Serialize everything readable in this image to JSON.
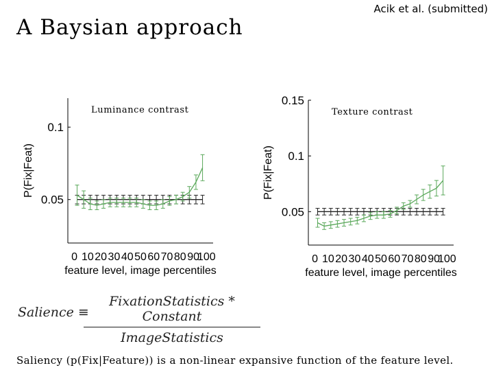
{
  "citation": "Acik et al. (submitted)",
  "slide_title": "A Baysian approach",
  "formula": {
    "lhs": "Salience ≡",
    "numerator": "FixationStatistics * Constant",
    "denominator": "ImageStatistics"
  },
  "caption": "Saliency (p(Fix|Feature)) is a non-linear expansive function of the feature level.",
  "chart_data": [
    {
      "type": "line",
      "title": "Luminance contrast",
      "xlabel": "feature level, image percentiles",
      "ylabel": "P(Fix|Feat)",
      "x_tick_labels": [
        "0",
        "10",
        "20",
        "30",
        "40",
        "50",
        "60",
        "70",
        "80",
        "90",
        "100"
      ],
      "y_ticks": [
        0.05,
        0.1
      ],
      "xlim": [
        -5,
        105
      ],
      "ylim": [
        0.02,
        0.12
      ],
      "x": [
        2,
        7,
        12,
        17,
        22,
        27,
        32,
        37,
        42,
        47,
        52,
        57,
        62,
        67,
        72,
        77,
        82,
        87,
        92,
        97
      ],
      "series": [
        {
          "color": "#5aa85a",
          "values": [
            0.053,
            0.05,
            0.047,
            0.046,
            0.047,
            0.048,
            0.048,
            0.048,
            0.048,
            0.048,
            0.047,
            0.046,
            0.046,
            0.047,
            0.049,
            0.05,
            0.052,
            0.055,
            0.062,
            0.072
          ],
          "errors": [
            0.007,
            0.006,
            0.004,
            0.003,
            0.003,
            0.003,
            0.003,
            0.003,
            0.003,
            0.003,
            0.003,
            0.003,
            0.003,
            0.003,
            0.003,
            0.003,
            0.003,
            0.004,
            0.005,
            0.009
          ]
        },
        {
          "color": "#222222",
          "values": [
            0.05,
            0.05,
            0.05,
            0.05,
            0.05,
            0.05,
            0.05,
            0.05,
            0.05,
            0.05,
            0.05,
            0.05,
            0.05,
            0.05,
            0.05,
            0.05,
            0.05,
            0.05,
            0.05,
            0.05
          ],
          "errors": [
            0.003,
            0.003,
            0.003,
            0.003,
            0.003,
            0.003,
            0.003,
            0.003,
            0.003,
            0.003,
            0.003,
            0.003,
            0.003,
            0.003,
            0.003,
            0.003,
            0.003,
            0.003,
            0.003,
            0.003
          ]
        }
      ]
    },
    {
      "type": "line",
      "title": "Texture contrast",
      "xlabel": "feature level, image percentiles",
      "ylabel": "P(Fix|Feat)",
      "x_tick_labels": [
        "0",
        "10",
        "20",
        "30",
        "40",
        "50",
        "60",
        "70",
        "80",
        "90",
        "100"
      ],
      "y_ticks": [
        0.05,
        0.1,
        0.15
      ],
      "xlim": [
        -5,
        105
      ],
      "ylim": [
        0.02,
        0.15
      ],
      "x": [
        2,
        7,
        12,
        17,
        22,
        27,
        32,
        37,
        42,
        47,
        52,
        57,
        62,
        67,
        72,
        77,
        82,
        87,
        92,
        97
      ],
      "series": [
        {
          "color": "#5aa85a",
          "values": [
            0.04,
            0.037,
            0.038,
            0.039,
            0.04,
            0.041,
            0.042,
            0.044,
            0.046,
            0.047,
            0.047,
            0.048,
            0.051,
            0.055,
            0.057,
            0.061,
            0.065,
            0.068,
            0.071,
            0.078
          ],
          "errors": [
            0.004,
            0.003,
            0.003,
            0.003,
            0.003,
            0.003,
            0.003,
            0.003,
            0.003,
            0.003,
            0.003,
            0.003,
            0.003,
            0.003,
            0.003,
            0.004,
            0.005,
            0.006,
            0.007,
            0.013
          ]
        },
        {
          "color": "#222222",
          "values": [
            0.05,
            0.05,
            0.05,
            0.05,
            0.05,
            0.05,
            0.05,
            0.05,
            0.05,
            0.05,
            0.05,
            0.05,
            0.05,
            0.05,
            0.05,
            0.05,
            0.05,
            0.05,
            0.05,
            0.05
          ],
          "errors": [
            0.003,
            0.003,
            0.003,
            0.003,
            0.003,
            0.003,
            0.003,
            0.003,
            0.003,
            0.003,
            0.003,
            0.003,
            0.003,
            0.003,
            0.003,
            0.003,
            0.003,
            0.003,
            0.003,
            0.003
          ]
        }
      ]
    }
  ]
}
